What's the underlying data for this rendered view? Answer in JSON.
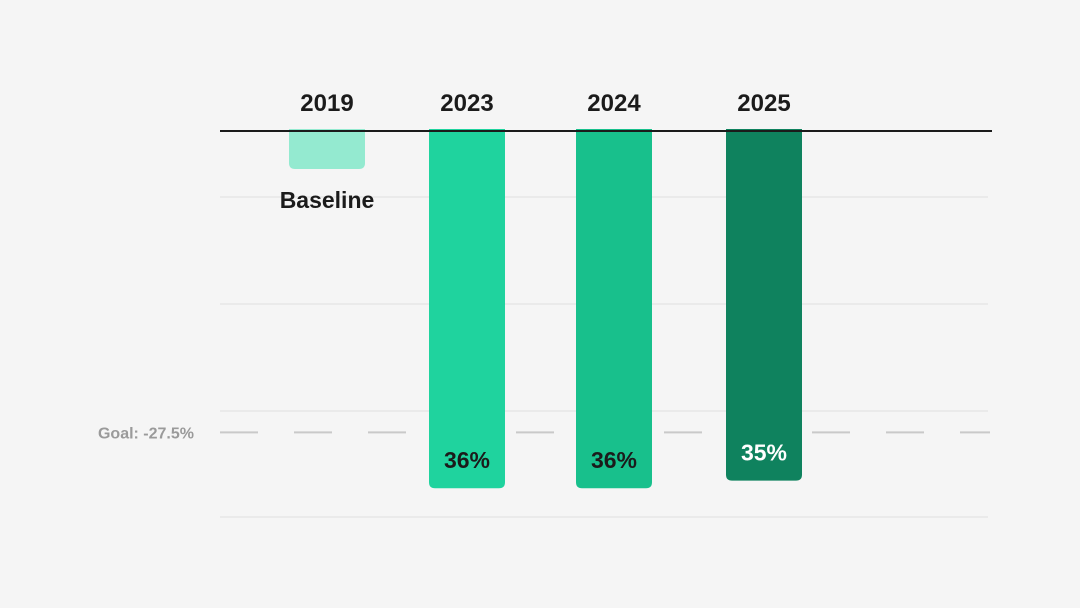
{
  "chart_data": {
    "type": "bar",
    "categories": [
      "2019",
      "2023",
      "2024",
      "2025"
    ],
    "values": [
      5,
      47,
      47,
      46
    ],
    "bar_labels": [
      "Baseline",
      "36%",
      "36%",
      "35%"
    ],
    "colors": [
      "#94ead0",
      "#1fd39e",
      "#18c08c",
      "#0f825e"
    ],
    "label_colors": [
      "#1b1b1b",
      "#1b1b1b",
      "#1b1b1b",
      "#ffffff"
    ],
    "ylim": [
      0,
      50
    ],
    "grid": true,
    "goal": {
      "label": "Goal: -27.5%",
      "value": 39
    },
    "title": "",
    "xlabel": "",
    "ylabel": ""
  }
}
